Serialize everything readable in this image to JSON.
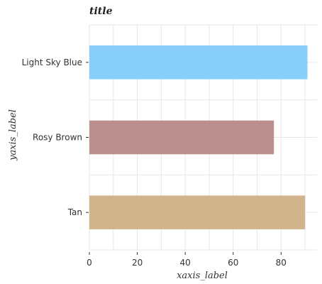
{
  "chart_data": {
    "type": "bar",
    "orientation": "horizontal",
    "title": "title",
    "xlabel": "xaxis_label",
    "ylabel": "yaxis_label",
    "categories": [
      "Tan",
      "Rosy Brown",
      "Light Sky Blue"
    ],
    "values": [
      90,
      77,
      91
    ],
    "colors": [
      "#d2b48c",
      "#bc8f8f",
      "#87cefa"
    ],
    "xlim": [
      0,
      95
    ],
    "xticks": [
      0,
      20,
      40,
      60,
      80
    ],
    "xtick_labels": [
      "0",
      "20",
      "40",
      "60",
      "80"
    ],
    "grid": true
  }
}
